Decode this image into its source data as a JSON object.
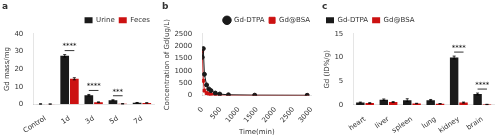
{
  "chart_data": [
    {
      "type": "bar",
      "title": "a",
      "categories": [
        "Control",
        "1d",
        "3d",
        "5d",
        "7d"
      ],
      "series": [
        {
          "name": "Urine",
          "color": "#1a1a1a",
          "values": [
            0.2,
            27.5,
            5.2,
            2.3,
            0.9
          ],
          "errors": [
            0.1,
            0.7,
            0.4,
            0.3,
            0.15
          ]
        },
        {
          "name": "Feces",
          "color": "#cc1111",
          "values": [
            0.15,
            14.5,
            1.2,
            0.3,
            0.8
          ],
          "errors": [
            0.05,
            0.6,
            0.2,
            0.1,
            0.1
          ]
        }
      ],
      "ylabel": "Gd mass/mg",
      "ylim": [
        0,
        40
      ],
      "yticks": [
        0,
        10,
        20,
        30,
        40
      ],
      "legend": "upper right",
      "grid": false,
      "annotations": [
        {
          "category": "1d",
          "text": "****"
        },
        {
          "category": "3d",
          "text": "****"
        },
        {
          "category": "5d",
          "text": "***"
        }
      ]
    },
    {
      "type": "line",
      "title": "b",
      "x": [
        0,
        30,
        60,
        120,
        180,
        240,
        360,
        480,
        720,
        1440,
        2880
      ],
      "series": [
        {
          "name": "Gd-DTPA",
          "color": "#1a1a1a",
          "marker": "circle",
          "values": [
            1550,
            1900,
            860,
            430,
            270,
            200,
            100,
            60,
            30,
            15,
            10
          ]
        },
        {
          "name": "Gd@BSA",
          "color": "#cc1111",
          "marker": "square",
          "values": [
            1800,
            600,
            200,
            100,
            70,
            50,
            30,
            20,
            12,
            8,
            5
          ]
        }
      ],
      "xlabel": "Time(min)",
      "ylabel": "Concentration of Gd(ug/L)",
      "xlim": [
        0,
        3000
      ],
      "xticks": [
        0,
        500,
        1000,
        1500,
        2000,
        2500,
        3000
      ],
      "ylim": [
        0,
        2500
      ],
      "yticks": [
        0,
        500,
        1000,
        1500,
        2000,
        2500
      ],
      "legend": "upper right",
      "grid": false
    },
    {
      "type": "bar",
      "title": "c",
      "categories": [
        "heart",
        "liver",
        "spleen",
        "lung",
        "kidney",
        "brain"
      ],
      "series": [
        {
          "name": "Gd-DTPA",
          "color": "#1a1a1a",
          "values": [
            0.5,
            1.1,
            1.0,
            1.0,
            10.0,
            2.3
          ],
          "errors": [
            0.1,
            0.15,
            0.3,
            0.15,
            0.3,
            0.2
          ]
        },
        {
          "name": "Gd@BSA",
          "color": "#cc1111",
          "values": [
            0.4,
            0.6,
            0.3,
            0.25,
            0.5,
            0.1
          ],
          "errors": [
            0.08,
            0.1,
            0.05,
            0.05,
            0.1,
            0.03
          ]
        }
      ],
      "ylabel": "Gd (ID%/g)",
      "ylim": [
        0,
        15
      ],
      "yticks": [
        0,
        5,
        10,
        15
      ],
      "legend": "upper left",
      "grid": false,
      "annotations": [
        {
          "category": "kidney",
          "text": "****"
        },
        {
          "category": "brain",
          "text": "****"
        }
      ]
    }
  ]
}
